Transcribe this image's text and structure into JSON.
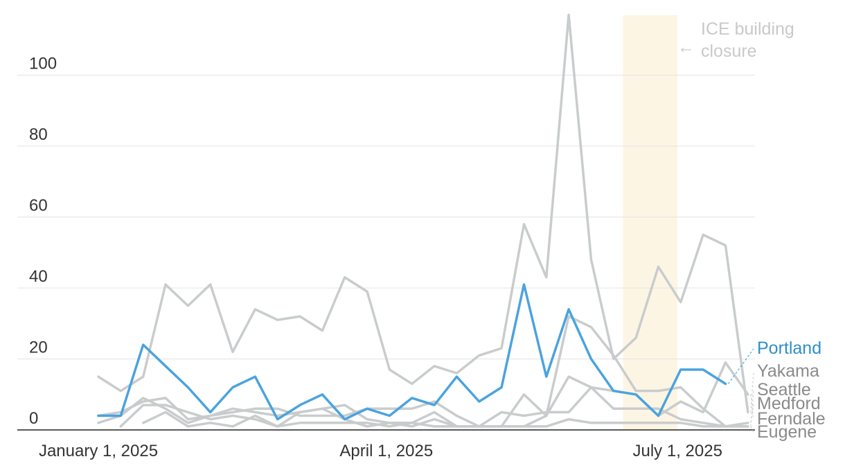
{
  "chart_data": {
    "type": "line",
    "x_unit": "week",
    "x": [
      "2025-01-01",
      "2025-01-08",
      "2025-01-15",
      "2025-01-22",
      "2025-01-29",
      "2025-02-05",
      "2025-02-12",
      "2025-02-19",
      "2025-02-26",
      "2025-03-05",
      "2025-03-12",
      "2025-03-19",
      "2025-03-26",
      "2025-04-02",
      "2025-04-09",
      "2025-04-16",
      "2025-04-23",
      "2025-04-30",
      "2025-05-07",
      "2025-05-14",
      "2025-05-21",
      "2025-05-28",
      "2025-06-04",
      "2025-06-11",
      "2025-06-18",
      "2025-06-25",
      "2025-07-02",
      "2025-07-09",
      "2025-07-16",
      "2025-07-23",
      "2025-07-30"
    ],
    "x_ticks": [
      {
        "date": "2025-01-01",
        "label": "January 1, 2025"
      },
      {
        "date": "2025-04-01",
        "label": "April 1, 2025"
      },
      {
        "date": "2025-07-01",
        "label": "July 1, 2025"
      }
    ],
    "y_ticks": [
      0,
      20,
      40,
      60,
      80,
      100
    ],
    "ylim": [
      0,
      117
    ],
    "grid": true,
    "highlight_series": "Portland",
    "series": [
      {
        "name": "Portland",
        "color": "#4aa3df",
        "label_color": "#2e8fc7",
        "values": [
          4,
          4,
          24,
          18,
          12,
          5,
          12,
          15,
          3,
          7,
          10,
          3,
          6,
          4,
          9,
          7,
          15,
          8,
          12,
          41,
          15,
          34,
          20,
          11,
          10,
          4,
          17,
          17,
          13,
          null,
          null
        ]
      },
      {
        "name": "Yakama",
        "color": "#c9cccd",
        "label_color": "#8a8a8a",
        "values": [
          15,
          11,
          15,
          41,
          35,
          41,
          22,
          34,
          31,
          32,
          28,
          43,
          39,
          17,
          13,
          18,
          16,
          21,
          23,
          58,
          43,
          117,
          48,
          20,
          26,
          46,
          36,
          55,
          52,
          5,
          null
        ]
      },
      {
        "name": "Seattle",
        "color": "#c9cccd",
        "label_color": "#8a8a8a",
        "values": [
          2,
          4,
          9,
          6,
          2,
          4,
          6,
          5,
          4,
          5,
          6,
          7,
          3,
          2,
          1,
          3,
          1,
          1,
          1,
          1,
          4,
          32,
          29,
          21,
          11,
          11,
          12,
          6,
          1,
          1,
          null
        ]
      },
      {
        "name": "Medford",
        "color": "#c9cccd",
        "label_color": "#8a8a8a",
        "values": [
          4,
          5,
          8,
          9,
          3,
          4,
          5,
          6,
          6,
          4,
          4,
          4,
          6,
          6,
          6,
          8,
          4,
          1,
          1,
          10,
          4,
          15,
          12,
          6,
          6,
          6,
          3,
          2,
          1,
          2,
          null
        ]
      },
      {
        "name": "Ferndale",
        "color": "#c9cccd",
        "label_color": "#8a8a8a",
        "values": [
          null,
          1,
          7,
          7,
          5,
          3,
          4,
          3,
          1,
          5,
          6,
          3,
          1,
          2,
          2,
          5,
          1,
          1,
          5,
          4,
          5,
          5,
          12,
          11,
          10,
          4,
          8,
          5,
          19,
          10,
          null
        ]
      },
      {
        "name": "Eugene",
        "color": "#c9cccd",
        "label_color": "#8a8a8a",
        "values": [
          null,
          null,
          2,
          5,
          1,
          2,
          1,
          4,
          1,
          2,
          2,
          2,
          2,
          1,
          2,
          1,
          1,
          1,
          1,
          1,
          1,
          3,
          2,
          2,
          2,
          2,
          2,
          1,
          1,
          1,
          null
        ]
      }
    ],
    "shaded_range": {
      "start": "2025-06-14",
      "end": "2025-07-01",
      "color": "#fdf5e4"
    },
    "annotation": {
      "lines": [
        "ICE building",
        "closure"
      ],
      "arrow": "←"
    }
  }
}
